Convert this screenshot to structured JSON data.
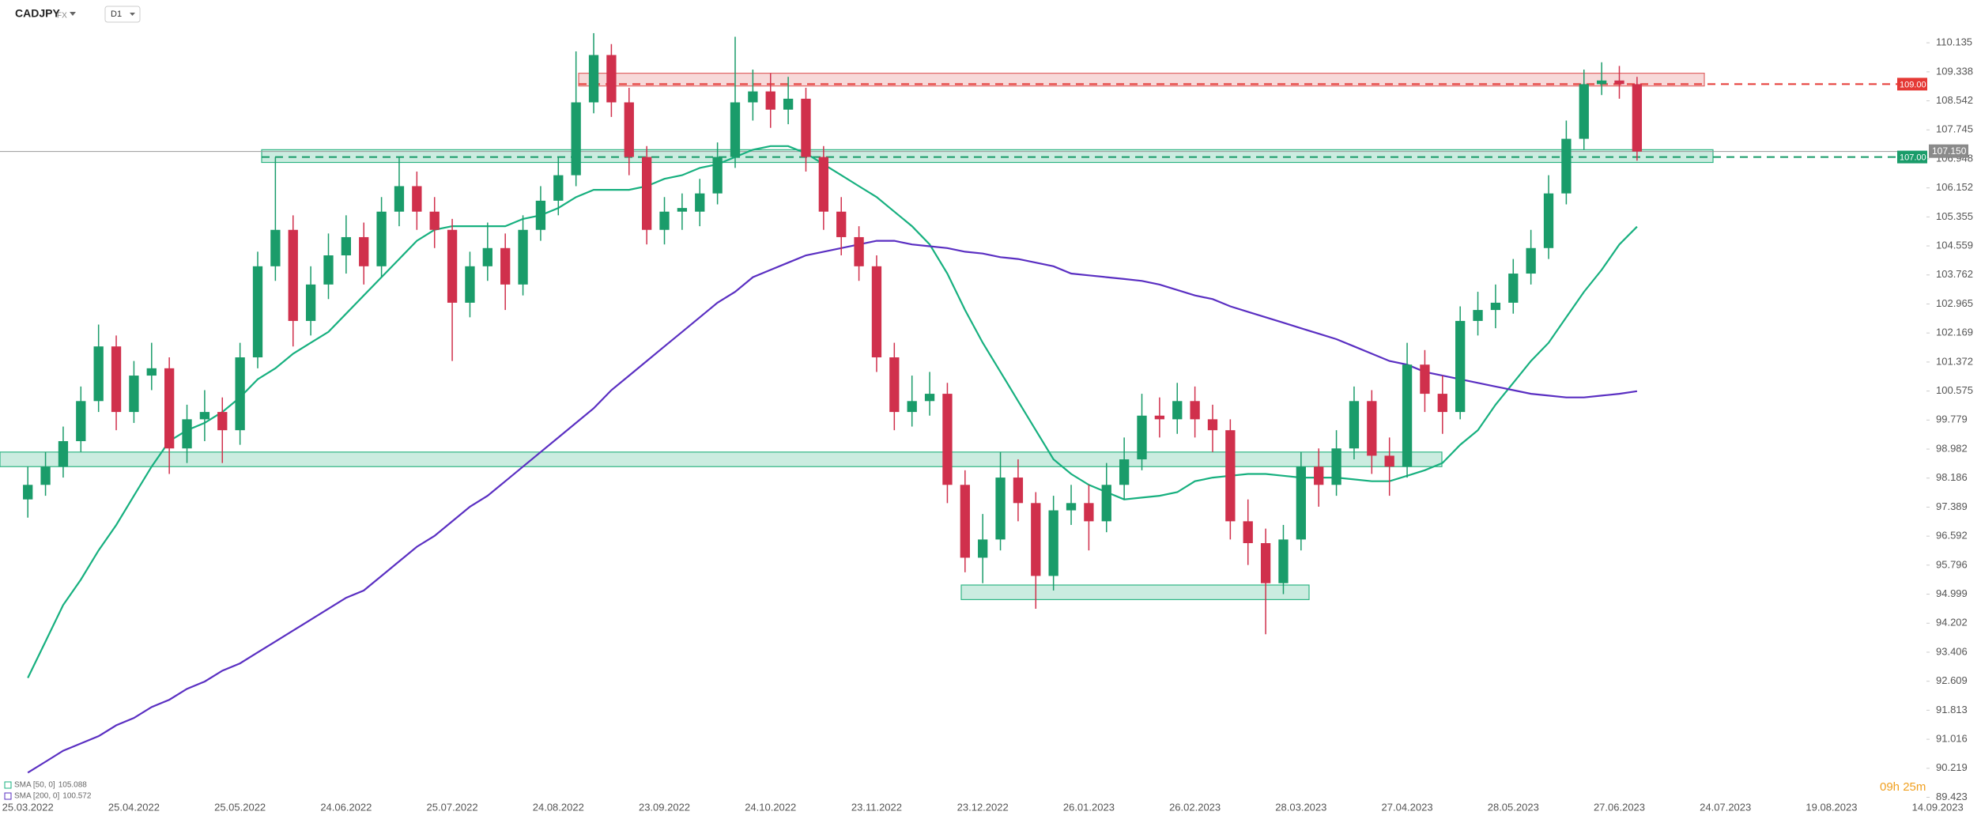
{
  "header": {
    "symbol": "CADJPY",
    "market": "FX",
    "interval": "D1"
  },
  "chart_data": {
    "type": "candlestick",
    "categories": [
      "25.03.2022",
      null,
      null,
      null,
      null,
      null,
      "25.04.2022",
      null,
      null,
      null,
      null,
      null,
      "25.05.2022",
      null,
      null,
      null,
      null,
      null,
      "24.06.2022",
      null,
      null,
      null,
      null,
      null,
      "25.07.2022",
      null,
      null,
      null,
      null,
      null,
      "24.08.2022",
      null,
      null,
      null,
      null,
      null,
      "23.09.2022",
      null,
      null,
      null,
      null,
      null,
      "24.10.2022",
      null,
      null,
      null,
      null,
      null,
      "23.11.2022",
      null,
      null,
      null,
      null,
      null,
      "23.12.2022",
      null,
      null,
      null,
      null,
      null,
      "26.01.2023",
      null,
      null,
      null,
      null,
      null,
      "26.02.2023",
      null,
      null,
      null,
      null,
      null,
      "28.03.2023",
      null,
      null,
      null,
      null,
      null,
      "27.04.2023",
      null,
      null,
      null,
      null,
      null,
      "28.05.2023",
      null,
      null,
      null,
      null,
      null,
      "27.06.2023",
      null,
      null,
      null,
      null,
      null,
      "24.07.2023",
      null,
      null,
      null,
      null,
      null,
      "19.08.2023",
      null,
      null,
      null,
      null,
      null,
      "14.09.2023"
    ],
    "open": [
      97.6,
      98.0,
      98.5,
      99.2,
      100.3,
      101.8,
      100.0,
      101.0,
      101.2,
      99.0,
      99.8,
      100.0,
      99.5,
      101.5,
      104.0,
      105.0,
      102.5,
      103.5,
      104.3,
      104.8,
      104.0,
      105.5,
      106.2,
      105.5,
      105.0,
      103.0,
      104.0,
      104.5,
      103.5,
      105.0,
      105.8,
      106.5,
      108.5,
      109.8,
      108.5,
      107.0,
      105.0,
      105.5,
      105.5,
      106.0,
      107.0,
      108.5,
      108.8,
      108.3,
      108.6,
      107.0,
      105.5,
      104.8,
      104.0,
      101.5,
      100.0,
      100.3,
      100.5,
      98.0,
      96.0,
      96.5,
      98.2,
      97.5,
      95.5,
      97.3,
      97.5,
      97.0,
      98.0,
      98.7,
      99.9,
      99.8,
      100.3,
      99.8,
      99.5,
      97.0,
      96.4,
      95.3,
      96.5,
      98.5,
      98.0,
      99.0,
      100.3,
      98.8,
      98.5,
      101.3,
      100.5,
      100.0,
      102.5,
      102.8,
      103.0,
      103.8,
      104.5,
      106.0,
      107.5,
      109.0,
      109.1,
      109.0,
      null,
      null,
      null,
      null,
      null,
      null,
      null,
      null,
      null,
      null,
      null,
      null,
      null,
      null,
      null,
      null,
      null
    ],
    "high": [
      98.5,
      98.9,
      99.6,
      100.7,
      102.4,
      102.1,
      101.4,
      101.9,
      101.5,
      100.2,
      100.6,
      100.4,
      101.9,
      104.4,
      107.0,
      105.4,
      104.0,
      104.9,
      105.4,
      105.2,
      105.9,
      107.0,
      106.6,
      105.9,
      105.3,
      104.4,
      105.2,
      104.9,
      105.4,
      106.2,
      107.0,
      109.9,
      110.4,
      110.1,
      108.9,
      107.3,
      105.9,
      106.0,
      106.4,
      107.4,
      110.3,
      109.4,
      109.3,
      109.2,
      108.9,
      107.3,
      105.9,
      105.1,
      104.3,
      101.9,
      101.0,
      101.1,
      100.8,
      98.4,
      97.2,
      98.9,
      98.7,
      97.8,
      97.7,
      98.0,
      98.0,
      98.6,
      99.3,
      100.5,
      100.4,
      100.8,
      100.7,
      100.2,
      99.8,
      97.6,
      96.8,
      96.9,
      98.9,
      99.0,
      99.5,
      100.7,
      100.6,
      99.3,
      101.9,
      101.7,
      101.0,
      102.9,
      103.3,
      103.5,
      104.2,
      105.0,
      106.5,
      108.0,
      109.4,
      109.6,
      109.5,
      109.2,
      null,
      null,
      null,
      null,
      null,
      null,
      null,
      null,
      null,
      null,
      null,
      null,
      null,
      null,
      null,
      null,
      null
    ],
    "low": [
      97.1,
      97.7,
      98.2,
      98.9,
      100.0,
      99.5,
      99.7,
      100.6,
      98.3,
      98.6,
      99.2,
      98.6,
      99.1,
      101.2,
      103.6,
      101.8,
      102.1,
      103.1,
      103.8,
      103.5,
      103.7,
      105.1,
      105.0,
      104.5,
      101.4,
      102.6,
      103.6,
      102.8,
      103.2,
      104.7,
      105.4,
      106.2,
      108.2,
      108.1,
      106.5,
      104.6,
      104.6,
      105.0,
      105.1,
      105.7,
      106.7,
      108.0,
      107.8,
      107.9,
      106.6,
      105.0,
      104.3,
      103.6,
      101.1,
      99.5,
      99.6,
      99.9,
      97.5,
      95.6,
      95.3,
      96.2,
      97.0,
      94.6,
      95.1,
      96.9,
      96.2,
      96.7,
      97.6,
      98.4,
      99.3,
      99.4,
      99.3,
      98.9,
      96.5,
      95.8,
      93.9,
      95.0,
      96.2,
      97.4,
      97.7,
      98.7,
      98.3,
      97.7,
      98.2,
      100.0,
      99.4,
      99.8,
      102.1,
      102.3,
      102.7,
      103.5,
      104.2,
      105.7,
      107.2,
      108.7,
      108.6,
      106.9,
      null,
      null,
      null,
      null,
      null,
      null,
      null,
      null,
      null,
      null,
      null,
      null,
      null,
      null,
      null,
      null,
      null
    ],
    "close": [
      98.0,
      98.5,
      99.2,
      100.3,
      101.8,
      100.0,
      101.0,
      101.2,
      99.0,
      99.8,
      100.0,
      99.5,
      101.5,
      104.0,
      105.0,
      102.5,
      103.5,
      104.3,
      104.8,
      104.0,
      105.5,
      106.2,
      105.5,
      105.0,
      103.0,
      104.0,
      104.5,
      103.5,
      105.0,
      105.8,
      106.5,
      108.5,
      109.8,
      108.5,
      107.0,
      105.0,
      105.5,
      105.6,
      106.0,
      107.0,
      108.5,
      108.8,
      108.3,
      108.6,
      107.0,
      105.5,
      104.8,
      104.0,
      101.5,
      100.0,
      100.3,
      100.5,
      98.0,
      96.0,
      96.5,
      98.2,
      97.5,
      95.5,
      97.3,
      97.5,
      97.0,
      98.0,
      98.7,
      99.9,
      99.8,
      100.3,
      99.8,
      99.5,
      97.0,
      96.4,
      95.3,
      96.5,
      98.5,
      98.0,
      99.0,
      100.3,
      98.8,
      98.5,
      101.3,
      100.5,
      100.0,
      102.5,
      102.8,
      103.0,
      103.8,
      104.5,
      106.0,
      107.5,
      109.0,
      109.1,
      109.0,
      107.15,
      null,
      null,
      null,
      null,
      null,
      null,
      null,
      null,
      null,
      null,
      null,
      null,
      null,
      null,
      null,
      null,
      null
    ],
    "up_color": "#1a9c6a",
    "down_color": "#d0304c",
    "series": [
      {
        "name": "SMA [50, 0]",
        "color": "#17b07f",
        "values": [
          92.7,
          93.7,
          94.7,
          95.4,
          96.2,
          96.9,
          97.7,
          98.5,
          99.2,
          99.5,
          99.7,
          100.0,
          100.4,
          100.9,
          101.2,
          101.6,
          101.9,
          102.2,
          102.7,
          103.2,
          103.7,
          104.2,
          104.7,
          105.0,
          105.1,
          105.1,
          105.1,
          105.1,
          105.3,
          105.4,
          105.6,
          105.9,
          106.1,
          106.1,
          106.1,
          106.2,
          106.4,
          106.5,
          106.7,
          106.8,
          107.0,
          107.2,
          107.3,
          107.3,
          107.1,
          106.8,
          106.5,
          106.2,
          105.9,
          105.5,
          105.1,
          104.6,
          103.8,
          102.8,
          101.9,
          101.1,
          100.3,
          99.5,
          98.7,
          98.3,
          98.0,
          97.8,
          97.6,
          97.65,
          97.7,
          97.8,
          98.1,
          98.2,
          98.25,
          98.3,
          98.3,
          98.25,
          98.2,
          98.2,
          98.2,
          98.15,
          98.1,
          98.1,
          98.25,
          98.4,
          98.6,
          99.1,
          99.5,
          100.2,
          100.8,
          101.4,
          101.9,
          102.6,
          103.3,
          103.9,
          104.6,
          105.088,
          null,
          null,
          null,
          null,
          null,
          null,
          null,
          null,
          null,
          null,
          null,
          null,
          null,
          null,
          null,
          null,
          null
        ]
      },
      {
        "name": "SMA [200, 0]",
        "color": "#5a2fc2",
        "values": [
          90.1,
          90.4,
          90.7,
          90.9,
          91.1,
          91.4,
          91.6,
          91.9,
          92.1,
          92.4,
          92.6,
          92.9,
          93.1,
          93.4,
          93.7,
          94.0,
          94.3,
          94.6,
          94.9,
          95.1,
          95.5,
          95.9,
          96.3,
          96.6,
          97.0,
          97.4,
          97.7,
          98.1,
          98.5,
          98.9,
          99.3,
          99.7,
          100.1,
          100.6,
          101.0,
          101.4,
          101.8,
          102.2,
          102.6,
          103.0,
          103.3,
          103.7,
          103.9,
          104.1,
          104.3,
          104.4,
          104.5,
          104.6,
          104.7,
          104.7,
          104.6,
          104.55,
          104.5,
          104.4,
          104.35,
          104.25,
          104.2,
          104.1,
          104.0,
          103.8,
          103.75,
          103.7,
          103.65,
          103.6,
          103.5,
          103.35,
          103.2,
          103.1,
          102.9,
          102.75,
          102.6,
          102.45,
          102.3,
          102.15,
          102.0,
          101.8,
          101.6,
          101.4,
          101.3,
          101.1,
          101.0,
          100.9,
          100.8,
          100.7,
          100.6,
          100.5,
          100.45,
          100.4,
          100.4,
          100.45,
          100.5,
          100.572,
          null,
          null,
          null,
          null,
          null,
          null,
          null,
          null,
          null,
          null,
          null,
          null,
          null,
          null,
          null,
          null,
          null
        ]
      }
    ],
    "zones": [
      {
        "low": 108.95,
        "high": 109.3,
        "color": "#e06666"
      },
      {
        "low": 106.85,
        "high": 107.2,
        "color": "#2fb584"
      },
      {
        "low": 98.5,
        "high": 98.9,
        "color": "#2fb584"
      },
      {
        "low": 94.85,
        "high": 95.25,
        "color": "#2fb584"
      }
    ],
    "levels": [
      {
        "value": 109,
        "label": "109.00",
        "color": "#e53935"
      },
      {
        "value": 107,
        "label": "107.00",
        "color": "#1a9c6a"
      }
    ],
    "last_price": {
      "value": 107.15,
      "label": "107.150"
    },
    "ylim": [
      89.39,
      111.31
    ],
    "yticks": [
      110.135,
      109.338,
      108.542,
      107.745,
      106.948,
      106.152,
      105.355,
      104.559,
      103.762,
      102.965,
      102.169,
      101.372,
      100.575,
      99.779,
      98.982,
      98.186,
      97.389,
      96.592,
      95.796,
      94.999,
      94.202,
      93.406,
      92.609,
      91.813,
      91.016,
      90.219,
      89.423
    ]
  },
  "countdown": "09h 25m"
}
